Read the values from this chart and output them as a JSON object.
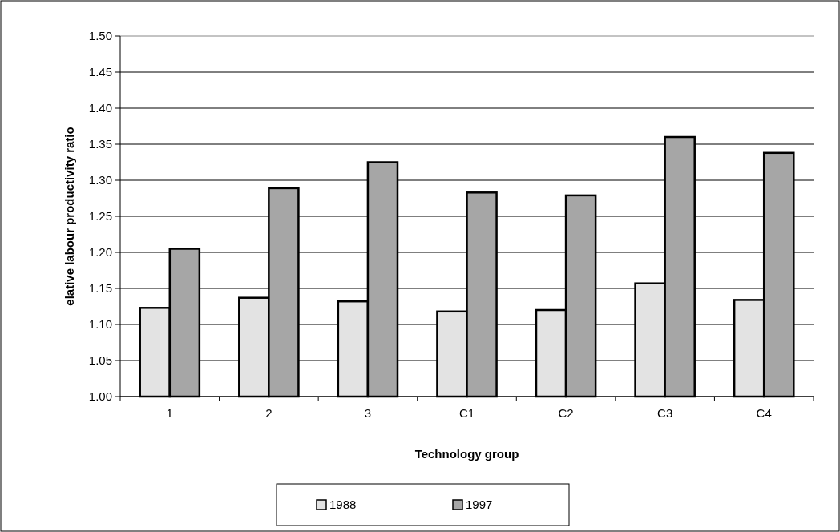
{
  "chart_data": {
    "type": "bar",
    "xlabel": "Technology group",
    "ylabel": "elative labour productivity ratio",
    "categories": [
      "1",
      "2",
      "3",
      "C1",
      "C2",
      "C3",
      "C4"
    ],
    "series": [
      {
        "name": "1988",
        "color": "#e3e3e3",
        "values": [
          1.123,
          1.137,
          1.132,
          1.118,
          1.12,
          1.157,
          1.134
        ]
      },
      {
        "name": "1997",
        "color": "#a6a6a6",
        "values": [
          1.205,
          1.289,
          1.325,
          1.283,
          1.279,
          1.36,
          1.338
        ]
      }
    ],
    "ylim": [
      1.0,
      1.5
    ],
    "yticks": [
      {
        "value": 1.0,
        "label": "1.00"
      },
      {
        "value": 1.05,
        "label": "1.05"
      },
      {
        "value": 1.1,
        "label": "1.10"
      },
      {
        "value": 1.15,
        "label": "1.15"
      },
      {
        "value": 1.2,
        "label": "1.20"
      },
      {
        "value": 1.25,
        "label": "1.25"
      },
      {
        "value": 1.3,
        "label": "1.30"
      },
      {
        "value": 1.35,
        "label": "1.35"
      },
      {
        "value": 1.4,
        "label": "1.40"
      },
      {
        "value": 1.45,
        "label": "1.45"
      },
      {
        "value": 1.5,
        "label": "1.50"
      }
    ],
    "grid": "y",
    "legend": "bottom"
  }
}
